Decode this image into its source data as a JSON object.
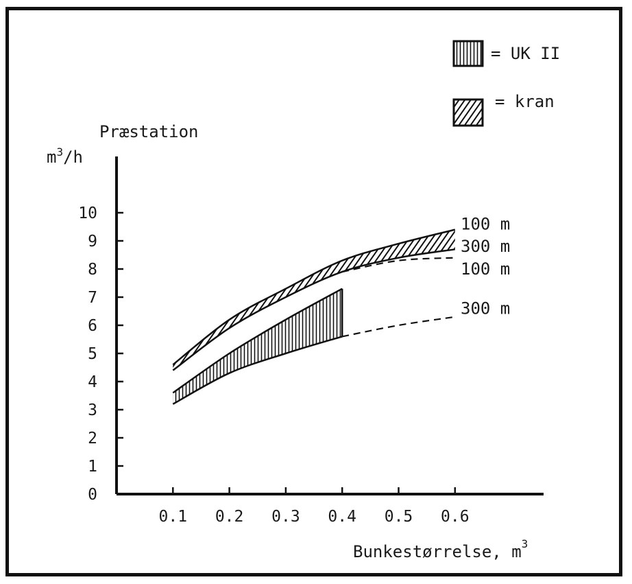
{
  "chart_data": {
    "type": "area",
    "ylabel_line1": "Præstation",
    "ylabel_line2_base": "m",
    "ylabel_line2_sup": "3",
    "ylabel_line2_tail": "/h",
    "xlabel_base": "Bunkestørrelse, m",
    "xlabel_sup": "3",
    "xlim": [
      0.0,
      0.7
    ],
    "ylim": [
      0,
      11
    ],
    "x_ticks": [
      "0.1",
      "0.2",
      "0.3",
      "0.4",
      "0.5",
      "0.6"
    ],
    "x_tick_values": [
      0.1,
      0.2,
      0.3,
      0.4,
      0.5,
      0.6
    ],
    "y_ticks": [
      "0",
      "1",
      "2",
      "3",
      "4",
      "5",
      "6",
      "7",
      "8",
      "9",
      "10"
    ],
    "y_tick_values": [
      0,
      1,
      2,
      3,
      4,
      5,
      6,
      7,
      8,
      9,
      10
    ],
    "legend": [
      {
        "key": "ukii",
        "pattern": "vertical",
        "text": "= UK II"
      },
      {
        "key": "kran",
        "pattern": "diagonal",
        "text": "= kran"
      }
    ],
    "bands": [
      {
        "key": "kran",
        "pattern": "diagonal",
        "upper": {
          "x": [
            0.1,
            0.2,
            0.3,
            0.4,
            0.5,
            0.6
          ],
          "y": [
            4.6,
            6.2,
            7.3,
            8.3,
            8.9,
            9.4
          ]
        },
        "lower": {
          "x": [
            0.1,
            0.2,
            0.3,
            0.4,
            0.5,
            0.6
          ],
          "y": [
            4.4,
            5.9,
            7.0,
            7.9,
            8.4,
            8.7
          ]
        }
      },
      {
        "key": "ukii",
        "pattern": "vertical",
        "upper": {
          "x": [
            0.1,
            0.2,
            0.3,
            0.4
          ],
          "y": [
            3.6,
            5.0,
            6.2,
            7.3
          ]
        },
        "lower": {
          "x": [
            0.1,
            0.2,
            0.3,
            0.4
          ],
          "y": [
            3.2,
            4.3,
            5.0,
            5.6
          ]
        }
      }
    ],
    "dashed_extensions": [
      {
        "x": [
          0.4,
          0.5,
          0.6
        ],
        "y": [
          7.9,
          8.3,
          8.4
        ]
      },
      {
        "x": [
          0.4,
          0.5,
          0.6
        ],
        "y": [
          5.6,
          6.0,
          6.3
        ]
      }
    ],
    "end_labels": [
      {
        "text": "100 m",
        "y": 9.6
      },
      {
        "text": "300 m",
        "y": 8.8
      },
      {
        "text": "100 m",
        "y": 8.0
      },
      {
        "text": "300 m",
        "y": 6.6
      }
    ]
  }
}
